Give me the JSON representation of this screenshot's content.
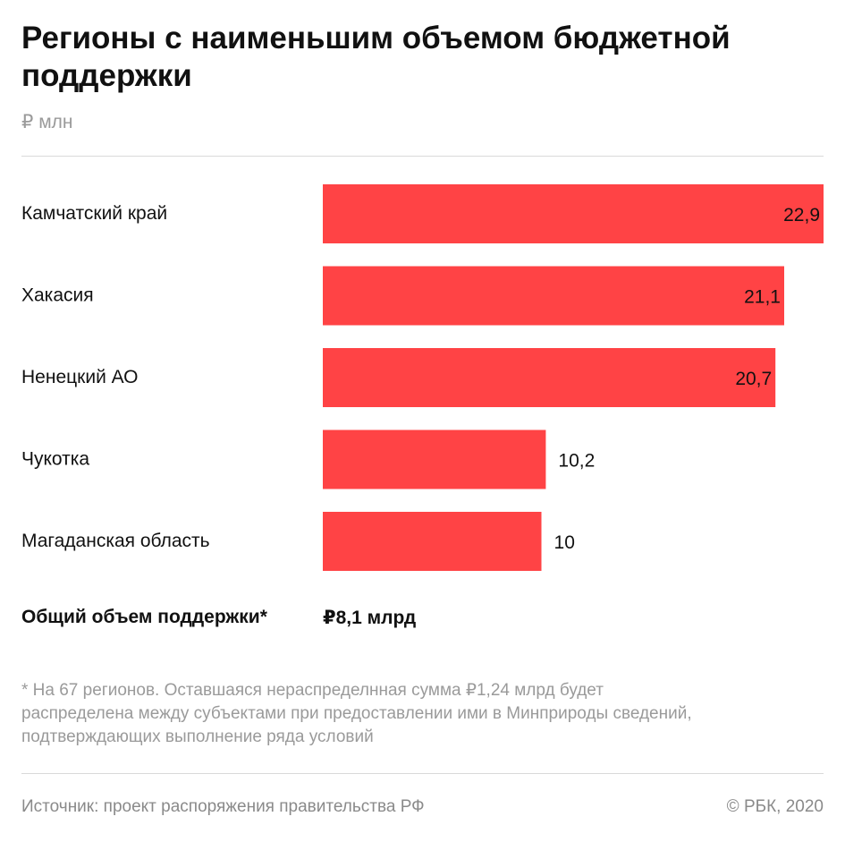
{
  "title": "Регионы с наименьшим объемом бюджетной поддержки",
  "unit": "₽ млн",
  "total": {
    "label": "Общий объем поддержки*",
    "value": "₽8,1 млрд"
  },
  "footnote": {
    "line1": "* На 67 регионов. Оставшаяся нераспределнная сумма ₽1,24 млрд будет",
    "line2": "распределена между субъектами при предоставлении ими в Минприроды сведений,",
    "line3": "подтверждающих выполнение ряда условий"
  },
  "source": "Источник: проект распоряжения правительства РФ",
  "copyright": "© РБК, 2020",
  "colors": {
    "bar": "#ff4345",
    "text": "#111111",
    "muted": "#9a9a9a"
  },
  "chart_data": {
    "type": "bar",
    "orientation": "horizontal",
    "categories": [
      "Камчатский край",
      "Хакасия",
      "Ненецкий АО",
      "Чукотка",
      "Магаданская область"
    ],
    "values": [
      22.9,
      21.1,
      20.7,
      10.2,
      10
    ],
    "value_labels": [
      "22,9",
      "21,1",
      "20,7",
      "10,2",
      "10"
    ],
    "xlim": [
      0,
      22.9
    ],
    "grid": false,
    "legend": "none"
  }
}
